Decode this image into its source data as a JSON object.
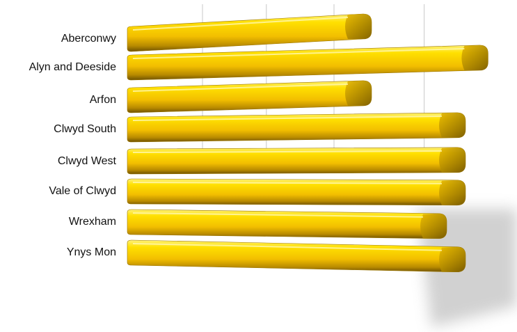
{
  "chart_data": {
    "type": "bar",
    "orientation": "horizontal",
    "style": "3d-perspective",
    "title": "",
    "xlabel": "",
    "ylabel": "",
    "categories": [
      "Aberconwy",
      "Alyn and Deeside",
      "Arfon",
      "Clwyd South",
      "Clwyd West",
      "Vale of Clwyd",
      "Wrexham",
      "Ynys Mon"
    ],
    "values": [
      65,
      96,
      65,
      90,
      90,
      90,
      85,
      90
    ],
    "xlim": [
      0,
      100
    ],
    "grid": true,
    "legend": "none",
    "colors": {
      "bar_top": "#FFE23A",
      "bar_mid": "#F7C500",
      "bar_dark": "#8A6A00",
      "grid": "#C8C8C8"
    }
  }
}
